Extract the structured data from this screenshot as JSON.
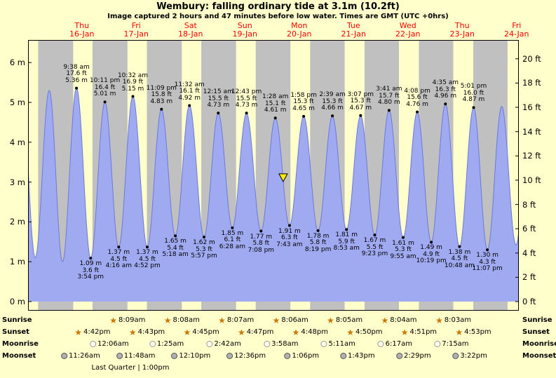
{
  "title": "Wembury: falling  ordinary tide at 3.1m (10.2ft)",
  "subtitle": "Image captured 2 hours and 47 minutes before low water. Times are GMT (UTC +0hrs)",
  "colors": {
    "background": "#ffffcc",
    "night_band": "#c0c0c0",
    "tide_fill": "#9faaf0",
    "tide_stroke": "#6b79dd",
    "day_label_red": "#ff0000",
    "marker_yellow": "#ffee00",
    "star_orange": "#c87800"
  },
  "icons": {
    "star": "★"
  },
  "day_labels": [
    {
      "dow": "Thu",
      "date": "16-Jan"
    },
    {
      "dow": "Fri",
      "date": "17-Jan"
    },
    {
      "dow": "Sat",
      "date": "18-Jan"
    },
    {
      "dow": "Sun",
      "date": "19-Jan"
    },
    {
      "dow": "Mon",
      "date": "20-Jan"
    },
    {
      "dow": "Tue",
      "date": "21-Jan"
    },
    {
      "dow": "Wed",
      "date": "22-Jan"
    },
    {
      "dow": "Thu",
      "date": "23-Jan"
    },
    {
      "dow": "Fri",
      "date": "24-Jan"
    }
  ],
  "chart_data": {
    "type": "area",
    "title": "Wembury tide height",
    "ylim_m": [
      0,
      6.6
    ],
    "y_left_ticks": [
      "6 m",
      "5 m",
      "4 m",
      "3 m",
      "2 m",
      "1 m",
      "0 m"
    ],
    "y_right_ticks": [
      "20 ft",
      "18 ft",
      "16 ft",
      "14 ft",
      "12 ft",
      "10 ft",
      "8 ft",
      "6 ft",
      "4 ft",
      "2 ft",
      "0 ft"
    ],
    "current_marker": {
      "t_hours": 100.93,
      "height_m": 3.1,
      "label_m": "3.1m",
      "label_ft": "10.2ft"
    },
    "high_tides": [
      {
        "time": "9:38 am",
        "ft": "17.6 ft",
        "m": "5.36 m",
        "t_hours": 9.633,
        "height_m": 5.36
      },
      {
        "time": "10:11 pm",
        "ft": "16.4 ft",
        "m": "5.01 m",
        "t_hours": 22.183,
        "height_m": 5.01
      },
      {
        "time": "10:32 am",
        "ft": "16.9 ft",
        "m": "5.15 m",
        "t_hours": 34.533,
        "height_m": 5.15
      },
      {
        "time": "11:09 pm",
        "ft": "15.8 ft",
        "m": "4.83 m",
        "t_hours": 47.15,
        "height_m": 4.83
      },
      {
        "time": "11:32 am",
        "ft": "16.1 ft",
        "m": "4.92 m",
        "t_hours": 59.533,
        "height_m": 4.92
      },
      {
        "time": "12:15 am",
        "ft": "15.5 ft",
        "m": "4.73 m",
        "t_hours": 72.25,
        "height_m": 4.73
      },
      {
        "time": "12:43 pm",
        "ft": "15.5 ft",
        "m": "4.73 m",
        "t_hours": 84.717,
        "height_m": 4.73
      },
      {
        "time": "1:28 am",
        "ft": "15.1 ft",
        "m": "4.61 m",
        "t_hours": 97.467,
        "height_m": 4.61
      },
      {
        "time": "1:58 pm",
        "ft": "15.3 ft",
        "m": "4.65 m",
        "t_hours": 109.967,
        "height_m": 4.65
      },
      {
        "time": "2:39 am",
        "ft": "15.3 ft",
        "m": "4.66 m",
        "t_hours": 122.65,
        "height_m": 4.66
      },
      {
        "time": "3:07 pm",
        "ft": "15.3 ft",
        "m": "4.67 m",
        "t_hours": 135.117,
        "height_m": 4.67
      },
      {
        "time": "3:41 am",
        "ft": "15.7 ft",
        "m": "4.80 m",
        "t_hours": 147.683,
        "height_m": 4.8
      },
      {
        "time": "4:08 pm",
        "ft": "15.6 ft",
        "m": "4.76 m",
        "t_hours": 160.133,
        "height_m": 4.76
      },
      {
        "time": "4:35 am",
        "ft": "16.3 ft",
        "m": "4.96 m",
        "t_hours": 172.583,
        "height_m": 4.96
      },
      {
        "time": "5:01 pm",
        "ft": "16.0 ft",
        "m": "4.87 m",
        "t_hours": 185.017,
        "height_m": 4.87
      }
    ],
    "low_tides": [
      {
        "m": "1.09 m",
        "ft": "3.6 ft",
        "time": "3:54 pm",
        "t_hours": 15.9,
        "height_m": 1.09
      },
      {
        "m": "1.37 m",
        "ft": "4.5 ft",
        "time": "4:16 am",
        "t_hours": 28.267,
        "height_m": 1.37
      },
      {
        "m": "1.37 m",
        "ft": "4.5 ft",
        "time": "4:52 pm",
        "t_hours": 40.867,
        "height_m": 1.37
      },
      {
        "m": "1.65 m",
        "ft": "5.4 ft",
        "time": "5:18 am",
        "t_hours": 53.3,
        "height_m": 1.65
      },
      {
        "m": "1.62 m",
        "ft": "5.3 ft",
        "time": "5:57 pm",
        "t_hours": 65.95,
        "height_m": 1.62
      },
      {
        "m": "1.85 m",
        "ft": "6.1 ft",
        "time": "6:28 am",
        "t_hours": 78.467,
        "height_m": 1.85
      },
      {
        "m": "1.77 m",
        "ft": "5.8 ft",
        "time": "7:08 pm",
        "t_hours": 91.133,
        "height_m": 1.77
      },
      {
        "m": "1.91 m",
        "ft": "6.3 ft",
        "time": "7:43 am",
        "t_hours": 103.717,
        "height_m": 1.91
      },
      {
        "m": "1.78 m",
        "ft": "5.8 ft",
        "time": "8:19 pm",
        "t_hours": 116.317,
        "height_m": 1.78
      },
      {
        "m": "1.81 m",
        "ft": "5.9 ft",
        "time": "8:53 am",
        "t_hours": 128.883,
        "height_m": 1.81
      },
      {
        "m": "1.67 m",
        "ft": "5.5 ft",
        "time": "9:23 pm",
        "t_hours": 141.383,
        "height_m": 1.67
      },
      {
        "m": "1.61 m",
        "ft": "5.3 ft",
        "time": "9:55 am",
        "t_hours": 153.917,
        "height_m": 1.61
      },
      {
        "m": "1.49 m",
        "ft": "4.9 ft",
        "time": "10:19 pm",
        "t_hours": 166.317,
        "height_m": 1.49
      },
      {
        "m": "1.38 m",
        "ft": "4.5 ft",
        "time": "10:48 am",
        "t_hours": 178.8,
        "height_m": 1.38
      },
      {
        "m": "1.30 m",
        "ft": "4.3 ft",
        "time": "11:07 pm",
        "t_hours": 191.117,
        "height_m": 1.3
      }
    ]
  },
  "astro": {
    "rows": [
      {
        "label": "Sunrise",
        "icon": "star",
        "events": [
          {
            "time": "8:09am",
            "t_hours": 32.15
          },
          {
            "time": "8:08am",
            "t_hours": 56.133
          },
          {
            "time": "8:07am",
            "t_hours": 80.117
          },
          {
            "time": "8:06am",
            "t_hours": 104.1
          },
          {
            "time": "8:05am",
            "t_hours": 128.083
          },
          {
            "time": "8:04am",
            "t_hours": 152.067
          },
          {
            "time": "8:03am",
            "t_hours": 176.05
          }
        ]
      },
      {
        "label": "Sunset",
        "icon": "star",
        "events": [
          {
            "time": "4:42pm",
            "t_hours": 16.7
          },
          {
            "time": "4:43pm",
            "t_hours": 40.717
          },
          {
            "time": "4:45pm",
            "t_hours": 64.75
          },
          {
            "time": "4:47pm",
            "t_hours": 88.783
          },
          {
            "time": "4:48pm",
            "t_hours": 112.8
          },
          {
            "time": "4:50pm",
            "t_hours": 136.833
          },
          {
            "time": "4:51pm",
            "t_hours": 160.85
          },
          {
            "time": "4:53pm",
            "t_hours": 184.883
          }
        ]
      },
      {
        "label": "Moonrise",
        "icon": "circle-open",
        "events": [
          {
            "time": "12:06am",
            "t_hours": 24.1
          },
          {
            "time": "1:25am",
            "t_hours": 49.417
          },
          {
            "time": "2:42am",
            "t_hours": 74.7
          },
          {
            "time": "3:58am",
            "t_hours": 99.967
          },
          {
            "time": "5:11am",
            "t_hours": 125.183
          },
          {
            "time": "6:17am",
            "t_hours": 150.283
          },
          {
            "time": "7:15am",
            "t_hours": 175.25
          }
        ]
      },
      {
        "label": "Moonset",
        "icon": "circle-filled",
        "events": [
          {
            "time": "11:26am",
            "t_hours": 11.433
          },
          {
            "time": "11:48am",
            "t_hours": 35.8
          },
          {
            "time": "12:10pm",
            "t_hours": 60.167
          },
          {
            "time": "12:36pm",
            "t_hours": 84.6
          },
          {
            "time": "1:06pm",
            "t_hours": 109.1
          },
          {
            "time": "1:43pm",
            "t_hours": 133.717
          },
          {
            "time": "2:29pm",
            "t_hours": 158.483
          },
          {
            "time": "3:22pm",
            "t_hours": 183.367
          }
        ]
      }
    ],
    "moon_phase": "Last Quarter | 1:00pm"
  }
}
